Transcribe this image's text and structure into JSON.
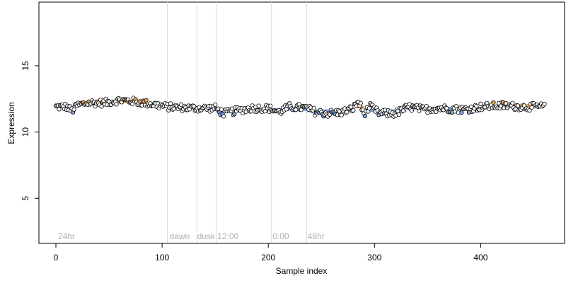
{
  "chart_data": {
    "type": "scatter",
    "xlabel": "Sample index",
    "ylabel": "Expression",
    "xlim": [
      -16,
      479
    ],
    "ylim": [
      1.6,
      19.8
    ],
    "xticks": [
      0,
      100,
      200,
      300,
      400
    ],
    "yticks": [
      5,
      10,
      15
    ],
    "n_points": 461,
    "grid": false,
    "phase_lines": [
      105,
      133,
      151,
      203,
      236
    ],
    "phase_labels": [
      {
        "x": 2,
        "text": "24hr"
      },
      {
        "x": 107,
        "text": "dawn"
      },
      {
        "x": 133,
        "text": "dusk"
      },
      {
        "x": 152,
        "text": "12:00"
      },
      {
        "x": 204,
        "text": "0:00"
      },
      {
        "x": 237,
        "text": "48hr"
      }
    ],
    "segments": [
      {
        "from": 0,
        "to": 17,
        "level": 11.9,
        "color": "#7ea6e0"
      },
      {
        "from": 17,
        "to": 58,
        "level": 12.1,
        "color": "#7ea6e0"
      },
      {
        "from": 58,
        "to": 75,
        "level": 12.3,
        "color": "#e8a55b"
      },
      {
        "from": 75,
        "to": 105,
        "level": 12.0,
        "color": "#7ea6e0"
      },
      {
        "from": 105,
        "to": 151,
        "level": 11.8,
        "color": "#7ea6e0"
      },
      {
        "from": 151,
        "to": 203,
        "level": 11.6,
        "color": "#7ea6e0"
      },
      {
        "from": 203,
        "to": 236,
        "level": 11.7,
        "color": "#7ea6e0"
      },
      {
        "from": 236,
        "to": 282,
        "level": 11.6,
        "color": "#7ea6e0"
      },
      {
        "from": 282,
        "to": 290,
        "level": 11.9,
        "color": "#e8a55b"
      },
      {
        "from": 290,
        "to": 330,
        "level": 11.6,
        "color": "#7ea6e0"
      },
      {
        "from": 330,
        "to": 415,
        "level": 11.8,
        "color": "#7ea6e0"
      },
      {
        "from": 415,
        "to": 461,
        "level": 12.0,
        "color": "#e8a55b"
      }
    ],
    "trend_knots": [
      [
        0,
        11.9
      ],
      [
        10,
        11.9
      ],
      [
        15,
        11.6
      ],
      [
        20,
        12.0
      ],
      [
        30,
        12.2
      ],
      [
        45,
        12.2
      ],
      [
        60,
        12.4
      ],
      [
        75,
        12.3
      ],
      [
        90,
        12.1
      ],
      [
        105,
        11.9
      ],
      [
        130,
        11.8
      ],
      [
        150,
        11.8
      ],
      [
        158,
        11.4
      ],
      [
        170,
        11.6
      ],
      [
        185,
        11.8
      ],
      [
        200,
        11.8
      ],
      [
        210,
        11.5
      ],
      [
        220,
        11.9
      ],
      [
        236,
        11.8
      ],
      [
        245,
        11.5
      ],
      [
        255,
        11.4
      ],
      [
        270,
        11.5
      ],
      [
        280,
        11.8
      ],
      [
        285,
        12.3
      ],
      [
        290,
        11.4
      ],
      [
        296,
        11.9
      ],
      [
        305,
        11.4
      ],
      [
        320,
        11.4
      ],
      [
        332,
        11.9
      ],
      [
        345,
        11.7
      ],
      [
        360,
        11.8
      ],
      [
        385,
        11.7
      ],
      [
        400,
        11.9
      ],
      [
        420,
        12.0
      ],
      [
        440,
        11.9
      ],
      [
        461,
        11.9
      ]
    ],
    "colors": {
      "point_stroke": "#000000",
      "point_fill_default": "#ffffff",
      "point_fill_low": "#7ea6e0",
      "point_fill_high": "#e8a55b",
      "phase_line": "#d9d9d9",
      "phase_label": "#b0b0b0"
    }
  }
}
